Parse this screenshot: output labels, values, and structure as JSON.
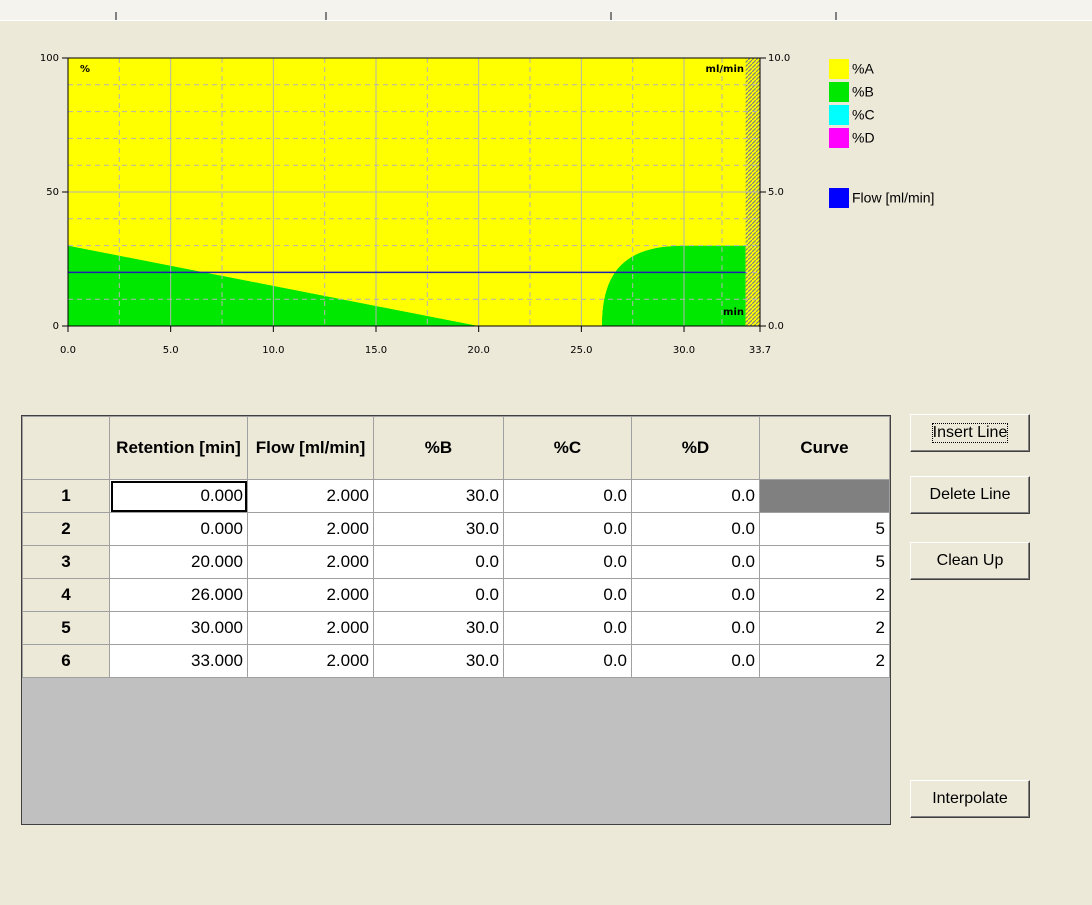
{
  "chart_data": {
    "type": "area",
    "x": [
      0,
      0,
      20,
      26,
      30,
      33
    ],
    "series": [
      {
        "name": "%A",
        "color": "#ffff00",
        "values": [
          70,
          70,
          100,
          100,
          70,
          70
        ]
      },
      {
        "name": "%B",
        "color": "#00e800",
        "values": [
          30,
          30,
          0,
          0,
          30,
          30
        ]
      },
      {
        "name": "%C",
        "color": "#00ffff",
        "values": [
          0,
          0,
          0,
          0,
          0,
          0
        ]
      },
      {
        "name": "%D",
        "color": "#ff00ff",
        "values": [
          0,
          0,
          0,
          0,
          0,
          0
        ]
      },
      {
        "name": "Flow [ml/min]",
        "color": "#0000ff",
        "type": "line",
        "axis": "y2",
        "values": [
          2,
          2,
          2,
          2,
          2,
          2
        ]
      }
    ],
    "y_label": "%",
    "y2_label": "ml/min",
    "x_label": "min",
    "xlim": [
      0,
      33.7
    ],
    "xticks": [
      {
        "value": 0,
        "label": "0.0"
      },
      {
        "value": 5,
        "label": "5.0"
      },
      {
        "value": 10,
        "label": "10.0"
      },
      {
        "value": 15,
        "label": "15.0"
      },
      {
        "value": 20,
        "label": "20.0"
      },
      {
        "value": 25,
        "label": "25.0"
      },
      {
        "value": 30,
        "label": "30.0"
      },
      33.7
    ],
    "ylim": [
      0,
      100
    ],
    "yticks": [
      0,
      50,
      100
    ],
    "y2lim": [
      0,
      10
    ],
    "y2ticks": [
      {
        "value": 0,
        "label": "0.0"
      },
      {
        "value": 5,
        "label": "5.0"
      },
      {
        "value": 10,
        "label": "10.0"
      }
    ],
    "grid": true
  },
  "table": {
    "columns": [
      "Retention [min]",
      "Flow [ml/min]",
      "%B",
      "%C",
      "%D",
      "Curve"
    ],
    "rows": [
      [
        "1",
        "0.000",
        "2.000",
        "30.0",
        "0.0",
        "0.0",
        null
      ],
      [
        "2",
        "0.000",
        "2.000",
        "30.0",
        "0.0",
        "0.0",
        "5"
      ],
      [
        "3",
        "20.000",
        "2.000",
        "0.0",
        "0.0",
        "0.0",
        "5"
      ],
      [
        "4",
        "26.000",
        "2.000",
        "0.0",
        "0.0",
        "0.0",
        "2"
      ],
      [
        "5",
        "30.000",
        "2.000",
        "30.0",
        "0.0",
        "0.0",
        "2"
      ],
      [
        "6",
        "33.000",
        "2.000",
        "30.0",
        "0.0",
        "0.0",
        "2"
      ]
    ]
  },
  "buttons": [
    "Insert Line",
    "Delete Line",
    "Clean Up",
    "Interpolate"
  ]
}
